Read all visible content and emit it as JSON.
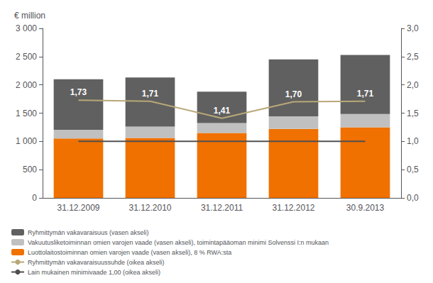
{
  "chart_data": {
    "type": "bar",
    "ylabel": "€ million",
    "categories": [
      "31.12.2009",
      "31.12.2010",
      "31.12.2011",
      "31.12.2012",
      "30.9.2013"
    ],
    "series": [
      {
        "name": "Ryhmittymän vakavaraisuus (vasen akseli)",
        "type": "bar",
        "color": "#606060",
        "values": [
          895,
          870,
          555,
          1005,
          1045
        ]
      },
      {
        "name": "Vakuutusliketoiminnan omien varojen vaade (vasen akseli), toimintapääoman minimi Solvenssi I:n mukaan",
        "type": "bar",
        "color": "#C0C0C0",
        "values": [
          155,
          200,
          175,
          225,
          235
        ]
      },
      {
        "name": "Luottolaitostoiminnan omien varojen vaade (vasen akseli), 8 % RWA:sta",
        "type": "bar",
        "color": "#F07000",
        "values": [
          1050,
          1060,
          1150,
          1220,
          1250
        ]
      },
      {
        "name": "Ryhmittymän vakavaraisuussuhde (oikea akseli)",
        "type": "line",
        "color": "#B8A878",
        "axis": "y2",
        "values": [
          1.73,
          1.71,
          1.41,
          1.7,
          1.71
        ],
        "data_labels": true,
        "value_labels": [
          "1,73",
          "1,71",
          "1,41",
          "1,70",
          "1,71"
        ]
      },
      {
        "name": "Lain mukainen minimivaade 1,00 (oikea akseli)",
        "type": "line",
        "color": "#505050",
        "axis": "y2",
        "values": [
          1.0,
          1.0,
          1.0,
          1.0,
          1.0
        ]
      }
    ],
    "stacked": true,
    "ylim": [
      0,
      3000
    ],
    "yticks": [
      0,
      500,
      {
        "value": 1000,
        "label": "1 000"
      },
      {
        "value": 1500,
        "label": "1 500"
      },
      {
        "value": 2000,
        "label": "2 000"
      },
      {
        "value": 2500,
        "label": "2 500"
      },
      {
        "value": 3000,
        "label": "3 000"
      }
    ],
    "y2lim": [
      0,
      3.0
    ],
    "y2ticks": [
      {
        "value": 0.0,
        "label": "0,0"
      },
      {
        "value": 0.5,
        "label": "0,5"
      },
      {
        "value": 1.0,
        "label": "1,0"
      },
      {
        "value": 1.5,
        "label": "1,5"
      },
      {
        "value": 2.0,
        "label": "2,0"
      },
      {
        "value": 2.5,
        "label": "2,5"
      },
      {
        "value": 3.0,
        "label": "3,0"
      }
    ],
    "grid": false,
    "legend": "bottom"
  }
}
